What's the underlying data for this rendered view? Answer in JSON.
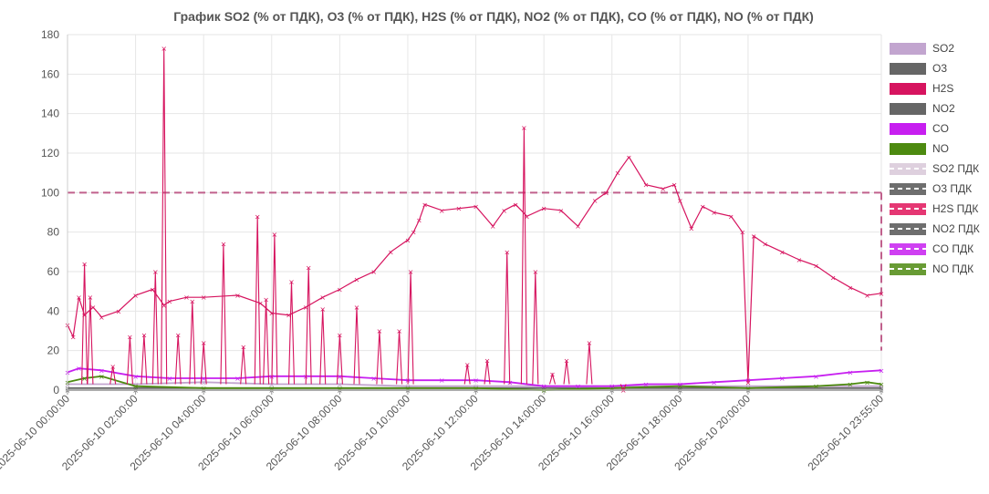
{
  "chart_data": {
    "type": "line",
    "title": "График  SO2 (% от ПДК), O3 (% от ПДК), H2S (% от ПДК), NO2 (% от ПДК), CO (% от ПДК), NO (% от ПДК)",
    "xlabel": "",
    "ylabel": "",
    "ylim": [
      0,
      180
    ],
    "y_ticks": [
      0,
      20,
      40,
      60,
      80,
      100,
      120,
      140,
      160,
      180
    ],
    "x_ticks": [
      "2025-06-10 00:00:00",
      "2025-06-10 02:00:00",
      "2025-06-10 04:00:00",
      "2025-06-10 06:00:00",
      "2025-06-10 08:00:00",
      "2025-06-10 10:00:00",
      "2025-06-10 12:00:00",
      "2025-06-10 14:00:00",
      "2025-06-10 16:00:00",
      "2025-06-10 18:00:00",
      "2025-06-10 20:00:00",
      "2025-06-10 23:55:00"
    ],
    "grid": true,
    "legend_position": "right",
    "threshold": {
      "value": 100,
      "label": "ПДК",
      "color": "#c0608c"
    },
    "series": [
      {
        "name": "SO2",
        "color": "#c2a5cf",
        "x": [
          "2025-06-10 00:00",
          "2025-06-10 02:00",
          "2025-06-10 04:00",
          "2025-06-10 06:00",
          "2025-06-10 08:00",
          "2025-06-10 10:00",
          "2025-06-10 12:00",
          "2025-06-10 14:00",
          "2025-06-10 16:00",
          "2025-06-10 18:00",
          "2025-06-10 20:00",
          "2025-06-10 23:55"
        ],
        "values": [
          3,
          3,
          4,
          3,
          3,
          2,
          2,
          2,
          2,
          2,
          2,
          2
        ]
      },
      {
        "name": "O3",
        "color": "#666666",
        "x": [
          "2025-06-10 00:00",
          "2025-06-10 02:00",
          "2025-06-10 04:00",
          "2025-06-10 06:00",
          "2025-06-10 08:00",
          "2025-06-10 10:00",
          "2025-06-10 12:00",
          "2025-06-10 14:00",
          "2025-06-10 16:00",
          "2025-06-10 18:00",
          "2025-06-10 20:00",
          "2025-06-10 23:55"
        ],
        "values": [
          0,
          0,
          0,
          0,
          0,
          0,
          0,
          0,
          0,
          0,
          0,
          0
        ]
      },
      {
        "name": "H2S",
        "color": "#d6145f",
        "x": [
          "2025-06-10 00:00",
          "2025-06-10 00:10",
          "2025-06-10 00:20",
          "2025-06-10 00:30",
          "2025-06-10 00:45",
          "2025-06-10 01:00",
          "2025-06-10 01:30",
          "2025-06-10 02:00",
          "2025-06-10 02:30",
          "2025-06-10 02:50",
          "2025-06-10 03:00",
          "2025-06-10 03:30",
          "2025-06-10 04:00",
          "2025-06-10 05:00",
          "2025-06-10 05:40",
          "2025-06-10 06:00",
          "2025-06-10 06:30",
          "2025-06-10 07:00",
          "2025-06-10 07:30",
          "2025-06-10 08:00",
          "2025-06-10 08:30",
          "2025-06-10 09:00",
          "2025-06-10 09:30",
          "2025-06-10 10:00",
          "2025-06-10 10:10",
          "2025-06-10 10:20",
          "2025-06-10 10:30",
          "2025-06-10 11:00",
          "2025-06-10 11:30",
          "2025-06-10 12:00",
          "2025-06-10 12:30",
          "2025-06-10 12:50",
          "2025-06-10 13:10",
          "2025-06-10 13:30",
          "2025-06-10 14:00",
          "2025-06-10 14:30",
          "2025-06-10 15:00",
          "2025-06-10 15:30",
          "2025-06-10 15:50",
          "2025-06-10 16:10",
          "2025-06-10 16:30",
          "2025-06-10 17:00",
          "2025-06-10 17:30",
          "2025-06-10 17:50",
          "2025-06-10 18:00",
          "2025-06-10 18:20",
          "2025-06-10 18:40",
          "2025-06-10 19:00",
          "2025-06-10 19:30",
          "2025-06-10 19:50",
          "2025-06-10 20:00",
          "2025-06-10 20:10",
          "2025-06-10 20:30",
          "2025-06-10 21:00",
          "2025-06-10 21:30",
          "2025-06-10 22:00",
          "2025-06-10 22:30",
          "2025-06-10 23:00",
          "2025-06-10 23:30",
          "2025-06-10 23:55"
        ],
        "values": [
          33,
          27,
          47,
          38,
          42,
          37,
          40,
          48,
          51,
          43,
          45,
          47,
          47,
          48,
          44,
          39,
          38,
          42,
          47,
          51,
          56,
          60,
          70,
          76,
          80,
          86,
          94,
          91,
          92,
          93,
          83,
          91,
          94,
          88,
          92,
          91,
          83,
          96,
          100,
          110,
          118,
          104,
          102,
          104,
          96,
          82,
          93,
          90,
          88,
          80,
          4,
          78,
          74,
          70,
          66,
          63,
          57,
          52,
          48,
          49
        ]
      },
      {
        "name": "NO2",
        "color": "#666666",
        "x": [
          "2025-06-10 00:00",
          "2025-06-10 02:00",
          "2025-06-10 04:00",
          "2025-06-10 06:00",
          "2025-06-10 08:00",
          "2025-06-10 10:00",
          "2025-06-10 12:00",
          "2025-06-10 14:00",
          "2025-06-10 16:00",
          "2025-06-10 18:00",
          "2025-06-10 20:00",
          "2025-06-10 23:55"
        ],
        "values": [
          1,
          1,
          1,
          1,
          1,
          1,
          1,
          1,
          1,
          1,
          1,
          1
        ]
      },
      {
        "name": "CO",
        "color": "#c71ff0",
        "x": [
          "2025-06-10 00:00",
          "2025-06-10 00:20",
          "2025-06-10 01:00",
          "2025-06-10 02:00",
          "2025-06-10 03:00",
          "2025-06-10 04:00",
          "2025-06-10 05:00",
          "2025-06-10 06:00",
          "2025-06-10 07:00",
          "2025-06-10 08:00",
          "2025-06-10 09:00",
          "2025-06-10 10:00",
          "2025-06-10 11:00",
          "2025-06-10 12:00",
          "2025-06-10 13:00",
          "2025-06-10 14:00",
          "2025-06-10 15:00",
          "2025-06-10 16:00",
          "2025-06-10 17:00",
          "2025-06-10 18:00",
          "2025-06-10 19:00",
          "2025-06-10 20:00",
          "2025-06-10 21:00",
          "2025-06-10 22:00",
          "2025-06-10 23:00",
          "2025-06-10 23:55"
        ],
        "values": [
          9,
          11,
          10,
          7,
          6,
          6,
          6,
          7,
          7,
          7,
          6,
          5,
          5,
          5,
          4,
          2,
          2,
          2,
          3,
          3,
          4,
          5,
          6,
          7,
          9,
          10
        ]
      },
      {
        "name": "NO",
        "color": "#4d8a10",
        "x": [
          "2025-06-10 00:00",
          "2025-06-10 00:30",
          "2025-06-10 01:00",
          "2025-06-10 02:00",
          "2025-06-10 04:00",
          "2025-06-10 06:00",
          "2025-06-10 08:00",
          "2025-06-10 10:00",
          "2025-06-10 12:00",
          "2025-06-10 14:00",
          "2025-06-10 16:00",
          "2025-06-10 18:00",
          "2025-06-10 20:00",
          "2025-06-10 22:00",
          "2025-06-10 23:00",
          "2025-06-10 23:30",
          "2025-06-10 23:55"
        ],
        "values": [
          4,
          6,
          7,
          2,
          1,
          1,
          1,
          1,
          1,
          0,
          1,
          2,
          1,
          2,
          3,
          4,
          3
        ]
      }
    ],
    "spikes": {
      "name": "H2S",
      "color": "#d6145f",
      "x": [
        "2025-06-10 00:30",
        "2025-06-10 00:40",
        "2025-06-10 01:20",
        "2025-06-10 01:50",
        "2025-06-10 02:15",
        "2025-06-10 02:35",
        "2025-06-10 02:50",
        "2025-06-10 03:15",
        "2025-06-10 03:40",
        "2025-06-10 04:00",
        "2025-06-10 04:35",
        "2025-06-10 05:10",
        "2025-06-10 05:35",
        "2025-06-10 05:50",
        "2025-06-10 06:05",
        "2025-06-10 06:35",
        "2025-06-10 07:05",
        "2025-06-10 07:30",
        "2025-06-10 08:00",
        "2025-06-10 08:30",
        "2025-06-10 09:10",
        "2025-06-10 09:45",
        "2025-06-10 10:05",
        "2025-06-10 11:45",
        "2025-06-10 12:20",
        "2025-06-10 12:55",
        "2025-06-10 13:25",
        "2025-06-10 13:45",
        "2025-06-10 14:15",
        "2025-06-10 14:40",
        "2025-06-10 15:20",
        "2025-06-10 16:20"
      ],
      "values": [
        64,
        47,
        12,
        27,
        28,
        60,
        173,
        28,
        45,
        24,
        74,
        22,
        88,
        46,
        79,
        55,
        62,
        41,
        28,
        42,
        30,
        30,
        60,
        13,
        15,
        70,
        133,
        60,
        8,
        15,
        24,
        0
      ]
    },
    "legend": [
      {
        "label": "SO2",
        "color": "#c2a5cf",
        "style": "box"
      },
      {
        "label": "O3",
        "color": "#666666",
        "style": "box"
      },
      {
        "label": "H2S",
        "color": "#d6145f",
        "style": "box"
      },
      {
        "label": "NO2",
        "color": "#666666",
        "style": "box"
      },
      {
        "label": "CO",
        "color": "#c71ff0",
        "style": "box"
      },
      {
        "label": "NO",
        "color": "#4d8a10",
        "style": "box"
      },
      {
        "label": "SO2 ПДК",
        "color": "#d8c8d8",
        "style": "dashed"
      },
      {
        "label": "O3 ПДК",
        "color": "#555555",
        "style": "dashed"
      },
      {
        "label": "H2S ПДК",
        "color": "#e0145a",
        "style": "dashed"
      },
      {
        "label": "NO2 ПДК",
        "color": "#555555",
        "style": "dashed"
      },
      {
        "label": "CO ПДК",
        "color": "#c71ff0",
        "style": "dashed"
      },
      {
        "label": "NO ПДК",
        "color": "#4d8a10",
        "style": "dashed"
      }
    ]
  }
}
